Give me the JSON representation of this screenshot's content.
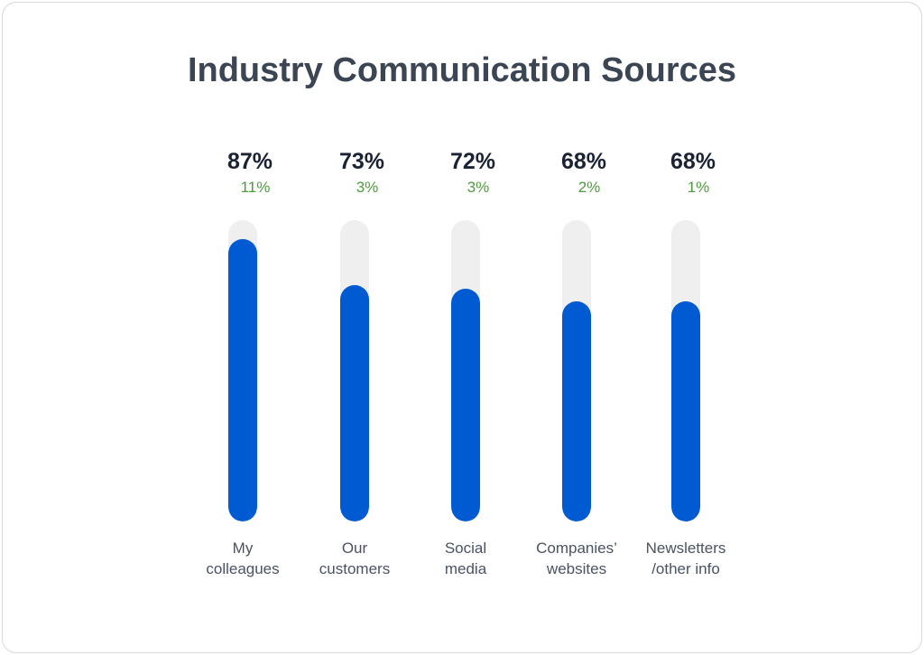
{
  "chart_data": {
    "type": "bar",
    "title": "Industry Communication Sources",
    "categories": [
      [
        "My",
        "colleagues"
      ],
      [
        "Our",
        "customers"
      ],
      [
        "Social",
        "media"
      ],
      [
        "Companies’",
        "websites"
      ],
      [
        "Newsletters",
        "/other info"
      ]
    ],
    "values": [
      87,
      73,
      72,
      68,
      68
    ],
    "value_labels": [
      "87%",
      "73%",
      "72%",
      "68%",
      "68%"
    ],
    "change_labels": [
      "11%",
      "3%",
      "3%",
      "2%",
      "1%"
    ],
    "ylim": [
      0,
      100
    ],
    "grid": false,
    "colors": {
      "bar": "#005bd3",
      "track": "#efefef",
      "change": "#4e9a3e",
      "title": "#3b4554"
    }
  }
}
